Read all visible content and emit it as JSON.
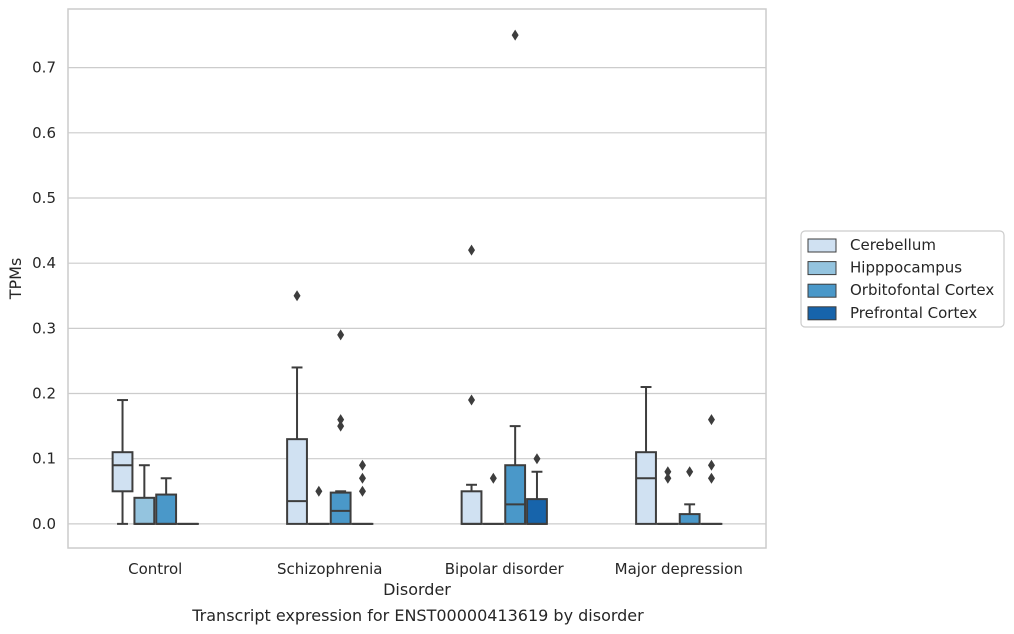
{
  "caption": "Transcript expression for ENST00000413619 by disorder",
  "chart_data": {
    "type": "box",
    "title": "",
    "xlabel": "Disorder",
    "ylabel": "TPMs",
    "ylim": [
      -0.037,
      0.79
    ],
    "yticks": [
      0.0,
      0.1,
      0.2,
      0.3,
      0.4,
      0.5,
      0.6,
      0.7
    ],
    "ytick_labels": [
      "0.0",
      "0.1",
      "0.2",
      "0.3",
      "0.4",
      "0.5",
      "0.6",
      "0.7"
    ],
    "grid": true,
    "legend_position": "right",
    "categories": [
      "Control",
      "Schizophrenia",
      "Bipolar disorder",
      "Major depression"
    ],
    "series": [
      {
        "name": "Cerebellum",
        "color": "#d0e1f2",
        "boxes": [
          {
            "whislo": 0.0,
            "q1": 0.05,
            "med": 0.09,
            "q3": 0.11,
            "whishi": 0.19,
            "fliers": []
          },
          {
            "whislo": 0.0,
            "q1": 0.0,
            "med": 0.035,
            "q3": 0.13,
            "whishi": 0.24,
            "fliers": [
              0.35
            ]
          },
          {
            "whislo": 0.0,
            "q1": 0.0,
            "med": 0.0,
            "q3": 0.05,
            "whishi": 0.06,
            "fliers": [
              0.19,
              0.42
            ]
          },
          {
            "whislo": 0.0,
            "q1": 0.0,
            "med": 0.07,
            "q3": 0.11,
            "whishi": 0.21,
            "fliers": []
          }
        ]
      },
      {
        "name": "Hipppocampus",
        "color": "#94c4df",
        "boxes": [
          {
            "whislo": 0.0,
            "q1": 0.0,
            "med": 0.0,
            "q3": 0.04,
            "whishi": 0.09,
            "fliers": []
          },
          {
            "whislo": 0.0,
            "q1": 0.0,
            "med": 0.0,
            "q3": 0.0,
            "whishi": 0.0,
            "fliers": [
              0.05
            ]
          },
          {
            "whislo": 0.0,
            "q1": 0.0,
            "med": 0.0,
            "q3": 0.0,
            "whishi": 0.0,
            "fliers": [
              0.07
            ]
          },
          {
            "whislo": 0.0,
            "q1": 0.0,
            "med": 0.0,
            "q3": 0.0,
            "whishi": 0.0,
            "fliers": [
              0.07,
              0.08
            ]
          }
        ]
      },
      {
        "name": "Orbitofontal Cortex",
        "color": "#4a98c9",
        "boxes": [
          {
            "whislo": 0.0,
            "q1": 0.0,
            "med": 0.0,
            "q3": 0.045,
            "whishi": 0.07,
            "fliers": []
          },
          {
            "whislo": 0.0,
            "q1": 0.0,
            "med": 0.02,
            "q3": 0.048,
            "whishi": 0.05,
            "fliers": [
              0.15,
              0.16,
              0.29
            ]
          },
          {
            "whislo": 0.0,
            "q1": 0.0,
            "med": 0.03,
            "q3": 0.09,
            "whishi": 0.15,
            "fliers": [
              0.75
            ]
          },
          {
            "whislo": 0.0,
            "q1": 0.0,
            "med": 0.0,
            "q3": 0.015,
            "whishi": 0.03,
            "fliers": [
              0.08
            ]
          }
        ]
      },
      {
        "name": "Prefrontal Cortex",
        "color": "#1764ab",
        "boxes": [
          {
            "whislo": 0.0,
            "q1": 0.0,
            "med": 0.0,
            "q3": 0.0,
            "whishi": 0.0,
            "fliers": []
          },
          {
            "whislo": 0.0,
            "q1": 0.0,
            "med": 0.0,
            "q3": 0.0,
            "whishi": 0.0,
            "fliers": [
              0.05,
              0.07,
              0.09
            ]
          },
          {
            "whislo": 0.0,
            "q1": 0.0,
            "med": 0.0,
            "q3": 0.038,
            "whishi": 0.08,
            "fliers": [
              0.1
            ]
          },
          {
            "whislo": 0.0,
            "q1": 0.0,
            "med": 0.0,
            "q3": 0.0,
            "whishi": 0.0,
            "fliers": [
              0.07,
              0.09,
              0.16
            ]
          }
        ]
      }
    ]
  }
}
